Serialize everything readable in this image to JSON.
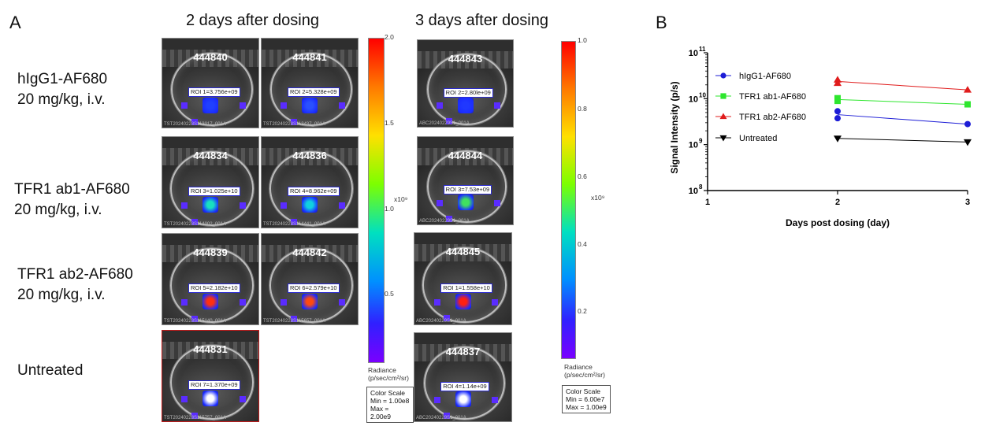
{
  "panel_a": {
    "letter": "A",
    "headers": [
      "2 days after dosing",
      "3 days after dosing"
    ],
    "row_labels": [
      {
        "line1": "hIgG1-AF680",
        "line2": "20 mg/kg, i.v."
      },
      {
        "line1": "TFR1 ab1-AF680",
        "line2": "20 mg/kg, i.v."
      },
      {
        "line1": "TFR1 ab2-AF680",
        "line2": "20 mg/kg, i.v."
      },
      {
        "line1": "Untreated",
        "line2": ""
      }
    ],
    "images": [
      {
        "id": "444840",
        "roi": "ROI 1=3.756e+09",
        "file": "TST20240228S113017_001A",
        "spot": "#2040ff"
      },
      {
        "id": "444841",
        "roi": "ROI 2=5.328e+09",
        "file": "TST20240228S113437_001A",
        "spot": "#2a50ff"
      },
      {
        "id": "444843",
        "roi": "ROI 2=2.80le+09",
        "file": "ABC20240229S1_001A",
        "spot": "#2038ff"
      },
      {
        "id": "444834",
        "roi": "ROI 3=1.025e+10",
        "file": "TST20240228S114002_001A",
        "spot": "#18e0c0"
      },
      {
        "id": "444836",
        "roi": "ROI 4=8.962e+09",
        "file": "TST20240228S114441_001A",
        "spot": "#10d0e0"
      },
      {
        "id": "444844",
        "roi": "ROI 3=7.53e+09",
        "file": "ABC20240229S1_001A",
        "spot": "#40e060"
      },
      {
        "id": "444839",
        "roi": "ROI 5=2.182e+10",
        "file": "TST20240228S115140_001A",
        "spot": "#ff3010"
      },
      {
        "id": "444842",
        "roi": "ROI 6=2.579e+10",
        "file": "TST20240228S115657_001A",
        "spot": "#ff4a10"
      },
      {
        "id": "444845",
        "roi": "ROI 1=1.558e+10",
        "file": "ABC20240229S1_001A",
        "spot": "#ff2010"
      },
      {
        "id": "444831",
        "roi": "ROI 7=1.370e+09",
        "file": "TST20240228S115757_001A",
        "spot": "#ffffff"
      },
      {
        "id": "444837",
        "roi": "ROI 4=1.14e+09",
        "file": "ABC20240229S1_001A",
        "spot": "#ffffff"
      }
    ],
    "colorbar_left": {
      "ticks": [
        "2.0",
        "1.5",
        "1.0",
        "0.5"
      ],
      "multiplier": "x10⁹",
      "radiance": "Radiance",
      "units": "(p/sec/cm²/sr)",
      "cs_title": "Color Scale",
      "cs_min": "Min = 1.00e8",
      "cs_max": "Max = 2.00e9"
    },
    "colorbar_right": {
      "ticks": [
        "1.0",
        "0.8",
        "0.6",
        "0.4",
        "0.2"
      ],
      "multiplier": "x10⁹",
      "radiance": "Radiance",
      "units": "(p/sec/cm²/sr)",
      "cs_title": "Color Scale",
      "cs_min": "Min = 6.00e7",
      "cs_max": "Max = 1.00e9"
    }
  },
  "panel_b": {
    "letter": "B"
  },
  "chart_data": {
    "type": "line",
    "title": "",
    "xlabel": "Days post dosing (day)",
    "ylabel": "Signal Intensity (p/s)",
    "x_ticks": [
      "1",
      "2",
      "3"
    ],
    "xlim": [
      1,
      3
    ],
    "y_scale": "log",
    "ylim": [
      100000000,
      100000000000
    ],
    "y_tick_labels": [
      {
        "base": "10",
        "exp": "11"
      },
      {
        "base": "10",
        "exp": "10"
      },
      {
        "base": "10",
        "exp": "9"
      },
      {
        "base": "10",
        "exp": "8"
      }
    ],
    "legend_position": "top-left",
    "series": [
      {
        "name": "hIgG1-AF680",
        "color": "#1c1cd6",
        "marker": "circle",
        "points": [
          [
            2,
            3756000000
          ],
          [
            2,
            5328000000
          ],
          [
            3,
            2801000000
          ]
        ],
        "line": [
          [
            2,
            4500000000
          ],
          [
            3,
            2801000000
          ]
        ]
      },
      {
        "name": "TFR1 ab1-AF680",
        "color": "#2ee62e",
        "marker": "square",
        "points": [
          [
            2,
            10250000000
          ],
          [
            2,
            8962000000
          ],
          [
            3,
            7530000000
          ]
        ],
        "line": [
          [
            2,
            9600000000
          ],
          [
            3,
            7530000000
          ]
        ]
      },
      {
        "name": "TFR1 ab2-AF680",
        "color": "#e01c1c",
        "marker": "triangle-up",
        "points": [
          [
            2,
            21820000000
          ],
          [
            2,
            25790000000
          ],
          [
            3,
            15580000000
          ]
        ],
        "line": [
          [
            2,
            23800000000
          ],
          [
            3,
            15580000000
          ]
        ]
      },
      {
        "name": "Untreated",
        "color": "#000000",
        "marker": "triangle-down",
        "points": [
          [
            2,
            1370000000
          ],
          [
            3,
            1140000000
          ]
        ],
        "line": [
          [
            2,
            1370000000
          ],
          [
            3,
            1140000000
          ]
        ]
      }
    ]
  }
}
